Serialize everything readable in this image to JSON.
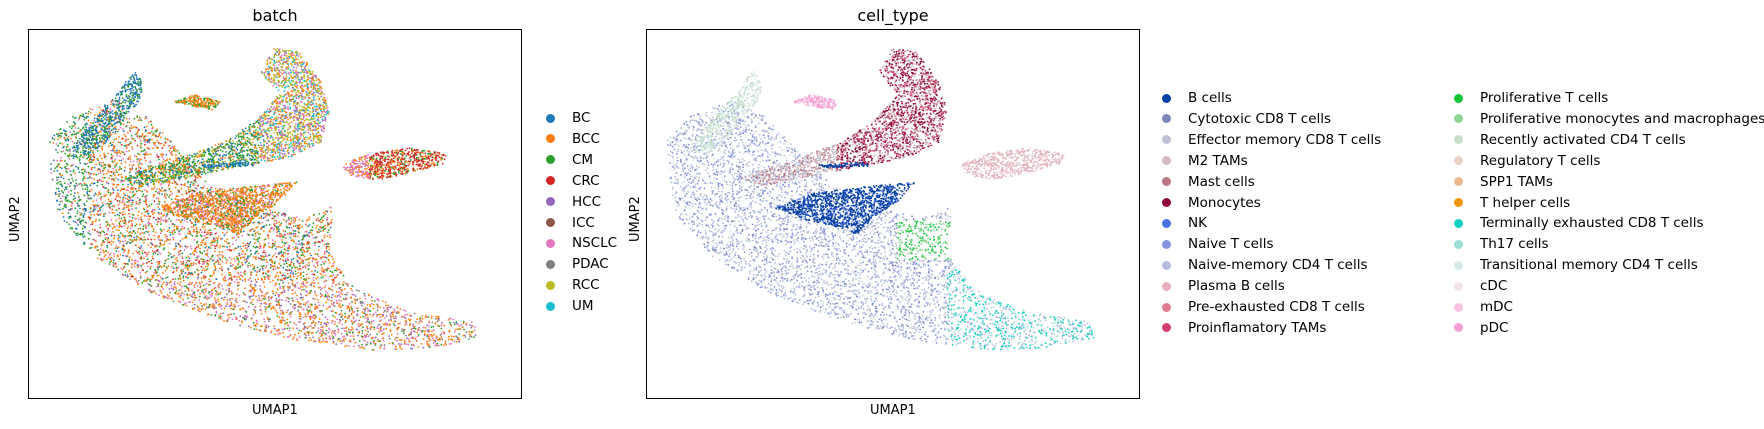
{
  "chart_data": [
    {
      "type": "scatter",
      "title": "batch",
      "xlabel": "UMAP1",
      "ylabel": "UMAP2",
      "grid": false,
      "legend_position": "right",
      "legend_columns": 1,
      "categories": [
        {
          "name": "BC",
          "color": "#1f77b4"
        },
        {
          "name": "BCC",
          "color": "#ff7f0e"
        },
        {
          "name": "CM",
          "color": "#2ca02c"
        },
        {
          "name": "CRC",
          "color": "#d62728"
        },
        {
          "name": "HCC",
          "color": "#9467bd"
        },
        {
          "name": "ICC",
          "color": "#8c564b"
        },
        {
          "name": "NSCLC",
          "color": "#e377c2"
        },
        {
          "name": "PDAC",
          "color": "#7f7f7f"
        },
        {
          "name": "RCC",
          "color": "#bcbd22"
        },
        {
          "name": "UM",
          "color": "#17becf"
        }
      ]
    },
    {
      "type": "scatter",
      "title": "cell_type",
      "xlabel": "UMAP1",
      "ylabel": "UMAP2",
      "grid": false,
      "legend_position": "right",
      "legend_columns": 2,
      "categories": [
        {
          "name": "B cells",
          "color": "#023fa5"
        },
        {
          "name": "Cytotoxic CD8 T cells",
          "color": "#7d87b9"
        },
        {
          "name": "Effector memory CD8 T cells",
          "color": "#bec1d4"
        },
        {
          "name": "M2 TAMs",
          "color": "#d6bcc0"
        },
        {
          "name": "Mast cells",
          "color": "#bb7784"
        },
        {
          "name": "Monocytes",
          "color": "#8e063b"
        },
        {
          "name": "NK",
          "color": "#4a6fe3"
        },
        {
          "name": "Naive T cells",
          "color": "#8595e1"
        },
        {
          "name": "Naive-memory CD4 T cells",
          "color": "#b5bbe3"
        },
        {
          "name": "Plasma B cells",
          "color": "#e6afb9"
        },
        {
          "name": "Pre-exhausted CD8 T cells",
          "color": "#e07b91"
        },
        {
          "name": "Proinflamatory TAMs",
          "color": "#d33f6a"
        },
        {
          "name": "Proliferative T cells",
          "color": "#11c638"
        },
        {
          "name": "Proliferative monocytes and macrophages",
          "color": "#8dd593"
        },
        {
          "name": "Recently activated CD4 T cells",
          "color": "#c6dec7"
        },
        {
          "name": "Regulatory T cells",
          "color": "#ead3c6"
        },
        {
          "name": "SPP1 TAMs",
          "color": "#f0b98d"
        },
        {
          "name": "T helper cells",
          "color": "#ef9708"
        },
        {
          "name": "Terminally exhausted CD8 T cells",
          "color": "#0fcfc0"
        },
        {
          "name": "Th17 cells",
          "color": "#9cded6"
        },
        {
          "name": "Transitional memory CD4 T cells",
          "color": "#d5eae7"
        },
        {
          "name": "cDC",
          "color": "#f3e1eb"
        },
        {
          "name": "mDC",
          "color": "#f6c4e1"
        },
        {
          "name": "pDC",
          "color": "#f79cd4"
        }
      ]
    }
  ]
}
